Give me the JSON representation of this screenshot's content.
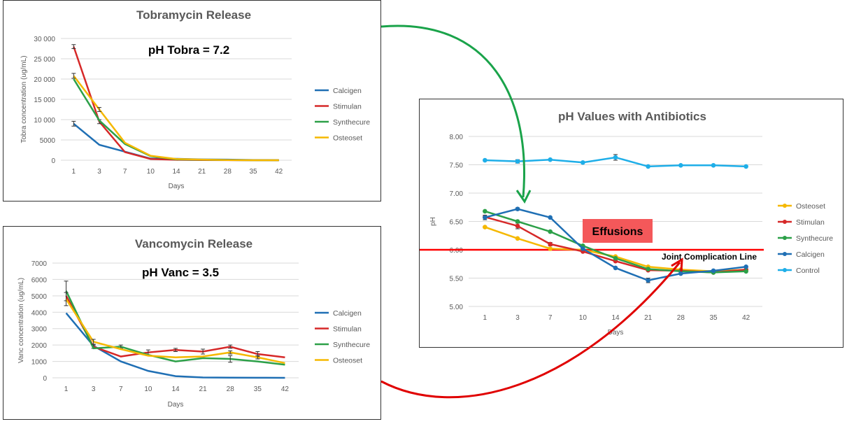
{
  "chart_data": [
    {
      "id": "tobra",
      "type": "line",
      "title": "Tobramycin Release",
      "annotation": "pH Tobra = 7.2",
      "xlabel": "Days",
      "ylabel": "Tobra concentration (ug/mL)",
      "categories": [
        "1",
        "3",
        "7",
        "10",
        "14",
        "21",
        "28",
        "35",
        "42"
      ],
      "ylim": [
        0,
        30000
      ],
      "yticks": [
        0,
        5000,
        10000,
        15000,
        20000,
        25000,
        30000
      ],
      "ytick_labels": [
        "0",
        "5000",
        "10 000",
        "15 000",
        "20 000",
        "25 000",
        "30 000"
      ],
      "series": [
        {
          "name": "Calcigen",
          "color": "#1f6fb4",
          "values": [
            9000,
            3800,
            2100,
            400,
            350,
            200,
            150,
            50,
            0
          ],
          "errors": [
            600,
            0,
            0,
            0,
            0,
            0,
            0,
            0,
            0
          ]
        },
        {
          "name": "Stimulan",
          "color": "#d62828",
          "values": [
            28000,
            9500,
            2000,
            300,
            100,
            50,
            20,
            0,
            0
          ],
          "errors": [
            500,
            500,
            0,
            0,
            0,
            0,
            0,
            0,
            0
          ]
        },
        {
          "name": "Synthecure",
          "color": "#2ca048",
          "values": [
            20000,
            9800,
            4000,
            1000,
            200,
            100,
            50,
            0,
            0
          ],
          "errors": [
            0,
            0,
            0,
            0,
            0,
            0,
            0,
            0,
            0
          ]
        },
        {
          "name": "Osteoset",
          "color": "#f5b800",
          "values": [
            20800,
            12500,
            4300,
            1100,
            300,
            150,
            50,
            0,
            0
          ],
          "errors": [
            600,
            500,
            0,
            0,
            0,
            0,
            0,
            0,
            0
          ]
        }
      ]
    },
    {
      "id": "vanc",
      "type": "line",
      "title": "Vancomycin Release",
      "annotation": "pH Vanc = 3.5",
      "xlabel": "Days",
      "ylabel": "Vanc concentration (ug/mL)",
      "categories": [
        "1",
        "3",
        "7",
        "10",
        "14",
        "21",
        "28",
        "35",
        "42"
      ],
      "ylim": [
        0,
        7000
      ],
      "yticks": [
        0,
        1000,
        2000,
        3000,
        4000,
        5000,
        6000,
        7000
      ],
      "ytick_labels": [
        "0",
        "1000",
        "2000",
        "3000",
        "4000",
        "5000",
        "6000",
        "7000"
      ],
      "series": [
        {
          "name": "Calcigen",
          "color": "#1f6fb4",
          "values": [
            3950,
            1950,
            1000,
            420,
            100,
            20,
            10,
            5,
            0
          ],
          "errors": [
            0,
            0,
            0,
            0,
            0,
            0,
            0,
            0,
            0
          ]
        },
        {
          "name": "Stimulan",
          "color": "#d62828",
          "values": [
            5000,
            1900,
            1300,
            1550,
            1700,
            1600,
            1900,
            1450,
            1250
          ],
          "errors": [
            0,
            100,
            0,
            150,
            100,
            150,
            100,
            150,
            0
          ]
        },
        {
          "name": "Synthecure",
          "color": "#2ca048",
          "values": [
            5300,
            1800,
            1900,
            1400,
            1000,
            1200,
            1150,
            1000,
            800
          ],
          "errors": [
            600,
            0,
            100,
            0,
            0,
            0,
            200,
            0,
            0
          ]
        },
        {
          "name": "Osteoset",
          "color": "#f5b800",
          "values": [
            4800,
            2200,
            1750,
            1350,
            1250,
            1300,
            1550,
            1250,
            900
          ],
          "errors": [
            400,
            150,
            0,
            0,
            0,
            0,
            100,
            100,
            0
          ]
        }
      ]
    },
    {
      "id": "ph",
      "type": "line",
      "title": "pH Values with Antibiotics",
      "xlabel": "Days",
      "ylabel": "pH",
      "categories": [
        "1",
        "3",
        "7",
        "10",
        "14",
        "21",
        "28",
        "35",
        "42"
      ],
      "ylim": [
        5.0,
        8.0
      ],
      "yticks": [
        5.0,
        5.5,
        6.0,
        6.5,
        7.0,
        7.5,
        8.0
      ],
      "ytick_labels": [
        "5.00",
        "5.50",
        "6.00",
        "6.50",
        "7.00",
        "7.50",
        "8.00"
      ],
      "reference_line": {
        "value": 6.0,
        "label": "Joint Complication Line",
        "color": "#ff0000"
      },
      "callout": {
        "label": "Effusions",
        "color": "#f4585a"
      },
      "series": [
        {
          "name": "Osteoset",
          "color": "#f5b800",
          "values": [
            6.4,
            6.2,
            6.02,
            6.0,
            5.88,
            5.7,
            5.65,
            5.62,
            5.65
          ],
          "errors": [
            0,
            0,
            0,
            0,
            0,
            0,
            0,
            0,
            0
          ]
        },
        {
          "name": "Stimulan",
          "color": "#d62828",
          "values": [
            6.58,
            6.42,
            6.1,
            5.97,
            5.8,
            5.64,
            5.63,
            5.6,
            5.65
          ],
          "errors": [
            0,
            0.05,
            0.03,
            0,
            0,
            0,
            0,
            0,
            0
          ]
        },
        {
          "name": "Synthecure",
          "color": "#2ca048",
          "values": [
            6.68,
            6.5,
            6.32,
            6.07,
            5.85,
            5.66,
            5.62,
            5.6,
            5.62
          ],
          "errors": [
            0,
            0,
            0,
            0,
            0,
            0,
            0,
            0,
            0
          ]
        },
        {
          "name": "Calcigen",
          "color": "#1f6fb4",
          "values": [
            6.57,
            6.72,
            6.57,
            6.02,
            5.68,
            5.46,
            5.58,
            5.63,
            5.7
          ],
          "errors": [
            0.04,
            0.02,
            0,
            0,
            0,
            0.04,
            0,
            0,
            0
          ]
        },
        {
          "name": "Control",
          "color": "#1eaee8",
          "values": [
            7.58,
            7.56,
            7.59,
            7.54,
            7.63,
            7.47,
            7.49,
            7.49,
            7.47
          ],
          "errors": [
            0,
            0.03,
            0,
            0,
            0.05,
            0,
            0,
            0,
            0
          ]
        }
      ]
    }
  ]
}
